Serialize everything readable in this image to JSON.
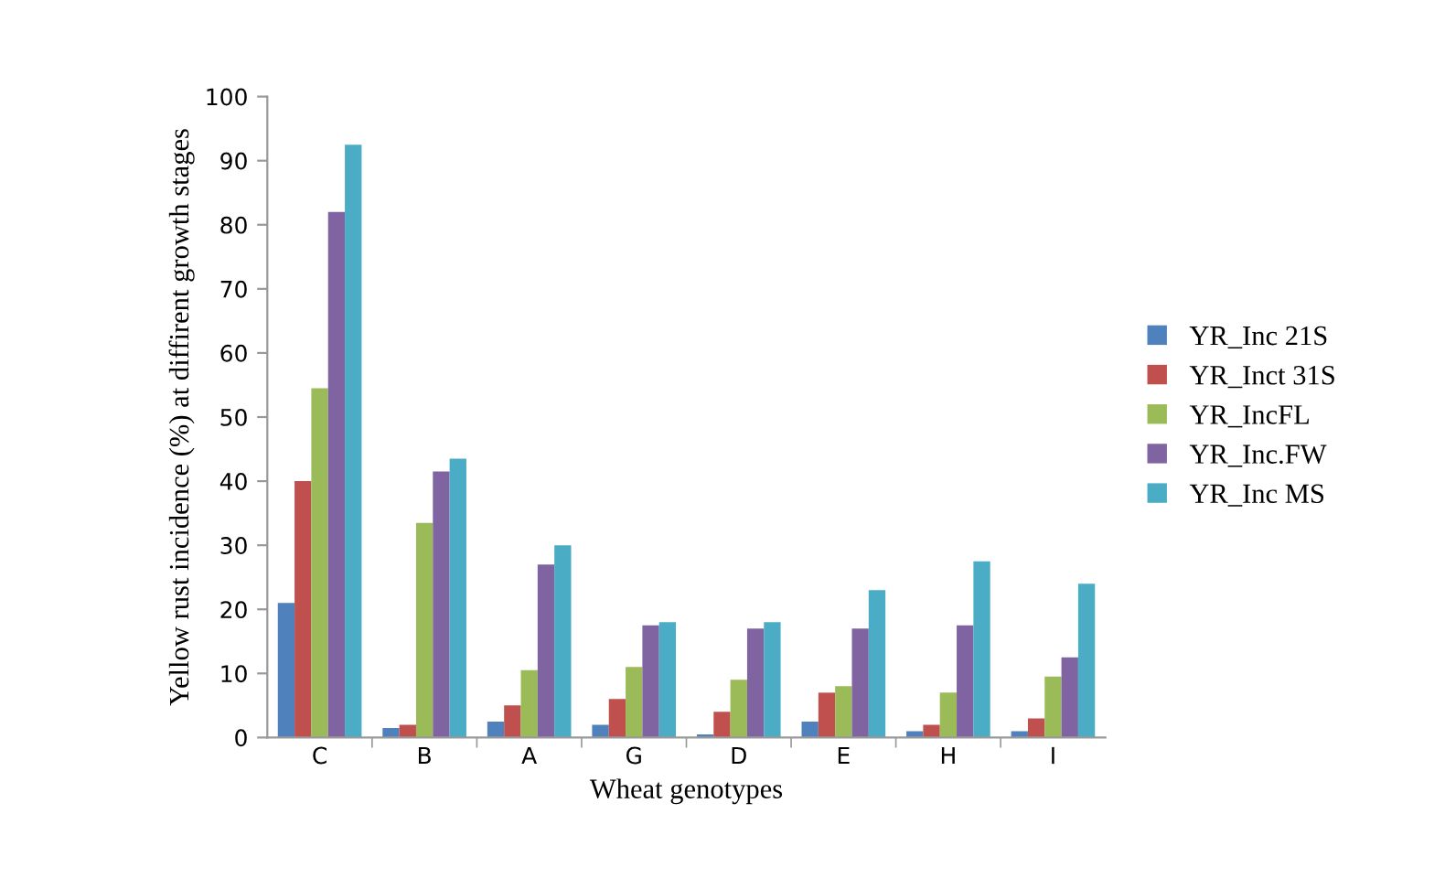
{
  "chart_data": {
    "type": "bar",
    "xlabel": "Wheat genotypes",
    "ylabel": "Yellow rust incidence (%) at diffirent growth stages",
    "categories": [
      "C",
      "B",
      "A",
      "G",
      "D",
      "E",
      "H",
      "I"
    ],
    "series": [
      {
        "name": "YR_Inc 21S",
        "color": "#4f81bd",
        "values": [
          21,
          1.5,
          2.5,
          2,
          0.5,
          2.5,
          1,
          1
        ]
      },
      {
        "name": "YR_Inct 31S",
        "color": "#c0504d",
        "values": [
          40,
          2,
          5,
          6,
          4,
          7,
          2,
          3
        ]
      },
      {
        "name": "YR_IncFL",
        "color": "#9bbb59",
        "values": [
          54.5,
          33.5,
          10.5,
          11,
          9,
          8,
          7,
          9.5
        ]
      },
      {
        "name": "YR_Inc.FW",
        "color": "#8064a2",
        "values": [
          82,
          41.5,
          27,
          17.5,
          17,
          17,
          17.5,
          12.5
        ]
      },
      {
        "name": "YR_Inc MS",
        "color": "#4bacc6",
        "values": [
          92.5,
          43.5,
          30,
          18,
          18,
          23,
          27.5,
          24
        ]
      }
    ],
    "ylim": [
      0,
      100
    ],
    "yticks": [
      0,
      10,
      20,
      30,
      40,
      50,
      60,
      70,
      80,
      90,
      100
    ],
    "grid": false,
    "legend": "right"
  }
}
